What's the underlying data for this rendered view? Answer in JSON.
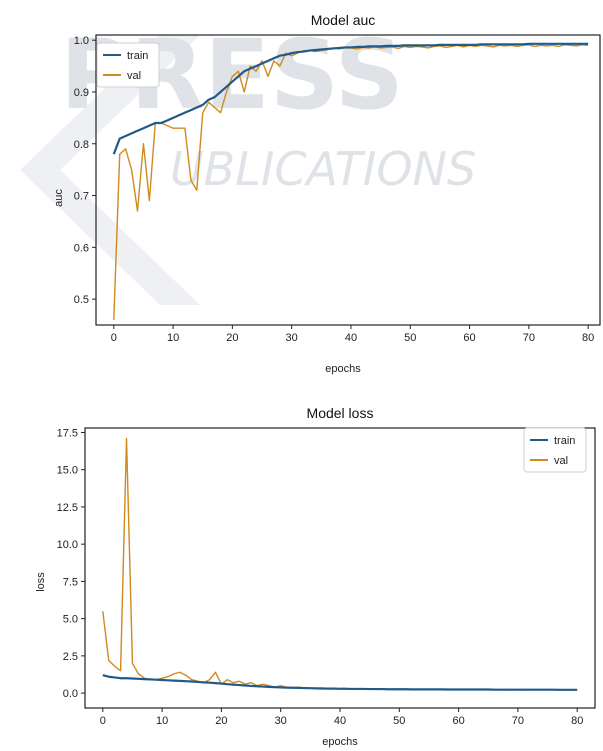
{
  "watermark": {
    "top_text": "PRESS",
    "mid_text": "UBLICATIONS",
    "color": "#dfe3e8"
  },
  "chart_data": [
    {
      "type": "line",
      "title": "Model auc",
      "xlabel": "epochs",
      "ylabel": "auc",
      "xlim": [
        -3,
        82
      ],
      "ylim": [
        0.45,
        1.01
      ],
      "xticks": [
        0,
        10,
        20,
        30,
        40,
        50,
        60,
        70,
        80
      ],
      "yticks": [
        0.5,
        0.6,
        0.7,
        0.8,
        0.9,
        1.0
      ],
      "ytick_labels": [
        "0.5",
        "0.6",
        "0.7",
        "0.8",
        "0.9",
        "1.0"
      ],
      "legend": "top-left",
      "grid": false,
      "x": [
        0,
        1,
        2,
        3,
        4,
        5,
        6,
        7,
        8,
        9,
        10,
        11,
        12,
        13,
        14,
        15,
        16,
        17,
        18,
        19,
        20,
        21,
        22,
        23,
        24,
        25,
        26,
        27,
        28,
        29,
        30,
        31,
        32,
        33,
        34,
        35,
        36,
        37,
        38,
        39,
        40,
        41,
        42,
        43,
        44,
        45,
        46,
        47,
        48,
        49,
        50,
        51,
        52,
        53,
        54,
        55,
        56,
        57,
        58,
        59,
        60,
        61,
        62,
        63,
        64,
        65,
        66,
        67,
        68,
        69,
        70,
        71,
        72,
        73,
        74,
        75,
        76,
        77,
        78,
        79,
        80
      ],
      "series": [
        {
          "name": "train",
          "color": "#1f5a8a",
          "values": [
            0.78,
            0.81,
            0.815,
            0.82,
            0.825,
            0.83,
            0.835,
            0.84,
            0.84,
            0.845,
            0.85,
            0.855,
            0.86,
            0.865,
            0.87,
            0.875,
            0.885,
            0.89,
            0.9,
            0.91,
            0.92,
            0.93,
            0.94,
            0.945,
            0.95,
            0.955,
            0.96,
            0.965,
            0.97,
            0.972,
            0.975,
            0.977,
            0.978,
            0.98,
            0.981,
            0.982,
            0.983,
            0.984,
            0.985,
            0.986,
            0.986,
            0.987,
            0.987,
            0.988,
            0.988,
            0.988,
            0.989,
            0.989,
            0.989,
            0.99,
            0.99,
            0.99,
            0.99,
            0.99,
            0.99,
            0.991,
            0.991,
            0.991,
            0.991,
            0.991,
            0.991,
            0.991,
            0.992,
            0.992,
            0.992,
            0.992,
            0.992,
            0.992,
            0.992,
            0.992,
            0.993,
            0.993,
            0.993,
            0.993,
            0.993,
            0.993,
            0.993,
            0.993,
            0.993,
            0.993,
            0.993
          ]
        },
        {
          "name": "val",
          "color": "#d08a1e",
          "values": [
            0.46,
            0.78,
            0.79,
            0.75,
            0.67,
            0.8,
            0.69,
            0.84,
            0.84,
            0.835,
            0.83,
            0.83,
            0.83,
            0.73,
            0.71,
            0.86,
            0.88,
            0.87,
            0.86,
            0.9,
            0.93,
            0.94,
            0.9,
            0.95,
            0.94,
            0.96,
            0.93,
            0.96,
            0.95,
            0.975,
            0.97,
            0.975,
            0.98,
            0.98,
            0.978,
            0.98,
            0.982,
            0.985,
            0.983,
            0.985,
            0.985,
            0.983,
            0.986,
            0.985,
            0.987,
            0.985,
            0.986,
            0.987,
            0.984,
            0.988,
            0.986,
            0.988,
            0.987,
            0.985,
            0.988,
            0.989,
            0.986,
            0.988,
            0.99,
            0.987,
            0.99,
            0.988,
            0.99,
            0.989,
            0.987,
            0.99,
            0.989,
            0.99,
            0.988,
            0.99,
            0.991,
            0.988,
            0.99,
            0.989,
            0.99,
            0.988,
            0.991,
            0.99,
            0.989,
            0.991,
            0.99
          ]
        }
      ]
    },
    {
      "type": "line",
      "title": "Model loss",
      "xlabel": "epochs",
      "ylabel": "loss",
      "xlim": [
        -3,
        83
      ],
      "ylim": [
        -1,
        17.8
      ],
      "xticks": [
        0,
        10,
        20,
        30,
        40,
        50,
        60,
        70,
        80
      ],
      "yticks": [
        0,
        2.5,
        5,
        7.5,
        10,
        12.5,
        15,
        17.5
      ],
      "ytick_labels": [
        "0.0",
        "2.5",
        "5.0",
        "7.5",
        "10.0",
        "12.5",
        "15.0",
        "17.5"
      ],
      "legend": "top-right",
      "grid": false,
      "x": [
        0,
        1,
        2,
        3,
        4,
        5,
        6,
        7,
        8,
        9,
        10,
        11,
        12,
        13,
        14,
        15,
        16,
        17,
        18,
        19,
        20,
        21,
        22,
        23,
        24,
        25,
        26,
        27,
        28,
        29,
        30,
        31,
        32,
        33,
        34,
        35,
        36,
        37,
        38,
        39,
        40,
        41,
        42,
        43,
        44,
        45,
        46,
        47,
        48,
        49,
        50,
        51,
        52,
        53,
        54,
        55,
        56,
        57,
        58,
        59,
        60,
        61,
        62,
        63,
        64,
        65,
        66,
        67,
        68,
        69,
        70,
        71,
        72,
        73,
        74,
        75,
        76,
        77,
        78,
        79,
        80
      ],
      "series": [
        {
          "name": "train",
          "color": "#1f5a8a",
          "values": [
            1.2,
            1.1,
            1.05,
            1.0,
            1.0,
            0.98,
            0.96,
            0.94,
            0.92,
            0.9,
            0.88,
            0.86,
            0.84,
            0.82,
            0.8,
            0.78,
            0.75,
            0.72,
            0.7,
            0.67,
            0.64,
            0.6,
            0.57,
            0.54,
            0.51,
            0.48,
            0.46,
            0.44,
            0.42,
            0.4,
            0.38,
            0.37,
            0.36,
            0.35,
            0.34,
            0.33,
            0.32,
            0.31,
            0.3,
            0.3,
            0.29,
            0.29,
            0.28,
            0.28,
            0.28,
            0.27,
            0.27,
            0.27,
            0.26,
            0.26,
            0.26,
            0.26,
            0.25,
            0.25,
            0.25,
            0.25,
            0.25,
            0.25,
            0.24,
            0.24,
            0.24,
            0.24,
            0.24,
            0.24,
            0.24,
            0.24,
            0.23,
            0.23,
            0.23,
            0.23,
            0.23,
            0.23,
            0.23,
            0.23,
            0.23,
            0.23,
            0.23,
            0.22,
            0.22,
            0.22,
            0.22
          ]
        },
        {
          "name": "val",
          "color": "#d08a1e",
          "values": [
            5.5,
            2.2,
            1.8,
            1.5,
            17.1,
            2.0,
            1.3,
            1.0,
            0.9,
            0.9,
            1.0,
            1.1,
            1.3,
            1.4,
            1.2,
            0.9,
            0.8,
            0.7,
            0.9,
            1.4,
            0.6,
            0.9,
            0.7,
            0.8,
            0.6,
            0.7,
            0.5,
            0.6,
            0.5,
            0.4,
            0.5,
            0.4,
            0.35,
            0.4,
            0.35,
            0.33,
            0.3,
            0.35,
            0.3,
            0.32,
            0.3,
            0.28,
            0.3,
            0.27,
            0.3,
            0.26,
            0.28,
            0.27,
            0.25,
            0.26,
            0.25,
            0.27,
            0.24,
            0.26,
            0.24,
            0.25,
            0.24,
            0.26,
            0.23,
            0.25,
            0.24,
            0.23,
            0.25,
            0.23,
            0.24,
            0.23,
            0.24,
            0.22,
            0.24,
            0.23,
            0.22,
            0.24,
            0.23,
            0.22,
            0.23,
            0.22,
            0.23,
            0.22,
            0.23,
            0.22,
            0.22
          ]
        }
      ]
    }
  ]
}
